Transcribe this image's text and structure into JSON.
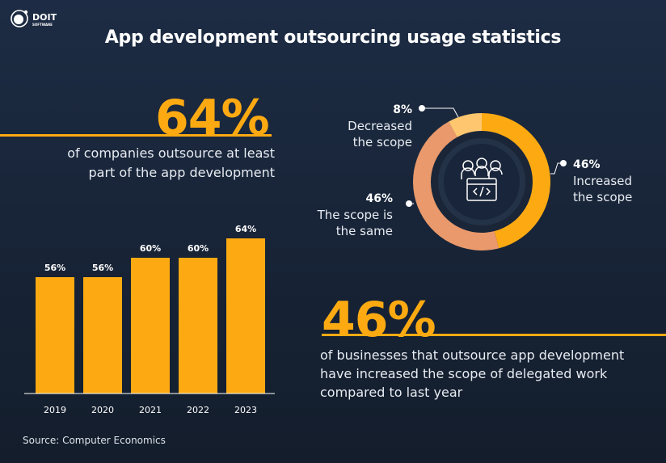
{
  "brand": {
    "name": "DOIT",
    "sub": "SOFTWARE"
  },
  "title": "App development outsourcing usage statistics",
  "stat1": {
    "value": "64%",
    "desc": "of companies outsource at least part of the app development"
  },
  "stat2": {
    "value": "46%",
    "desc": "of businesses that outsource app development have increased the scope of delegated work compared to last year"
  },
  "source": "Source: Computer Economics",
  "colors": {
    "accent": "#fdaa12",
    "salmon": "#e9996b",
    "light": "#fec66e",
    "bg": "#1b2a40"
  },
  "chart_data": [
    {
      "type": "bar",
      "categories": [
        "2019",
        "2020",
        "2021",
        "2022",
        "2023"
      ],
      "values": [
        56,
        56,
        60,
        60,
        64
      ],
      "data_labels": [
        "56%",
        "56%",
        "60%",
        "60%",
        "64%"
      ],
      "ylim": [
        32,
        66
      ],
      "grid": false
    },
    {
      "type": "pie",
      "donut": true,
      "center_icon": "team-code-icon",
      "slices": [
        {
          "pct": "46%",
          "label": "Increased the scope",
          "value": 46,
          "color": "#fdaa12"
        },
        {
          "pct": "46%",
          "label": "The scope is the same",
          "value": 46,
          "color": "#e9996b"
        },
        {
          "pct": "8%",
          "label": "Decreased the scope",
          "value": 8,
          "color": "#fec66e"
        }
      ]
    }
  ]
}
